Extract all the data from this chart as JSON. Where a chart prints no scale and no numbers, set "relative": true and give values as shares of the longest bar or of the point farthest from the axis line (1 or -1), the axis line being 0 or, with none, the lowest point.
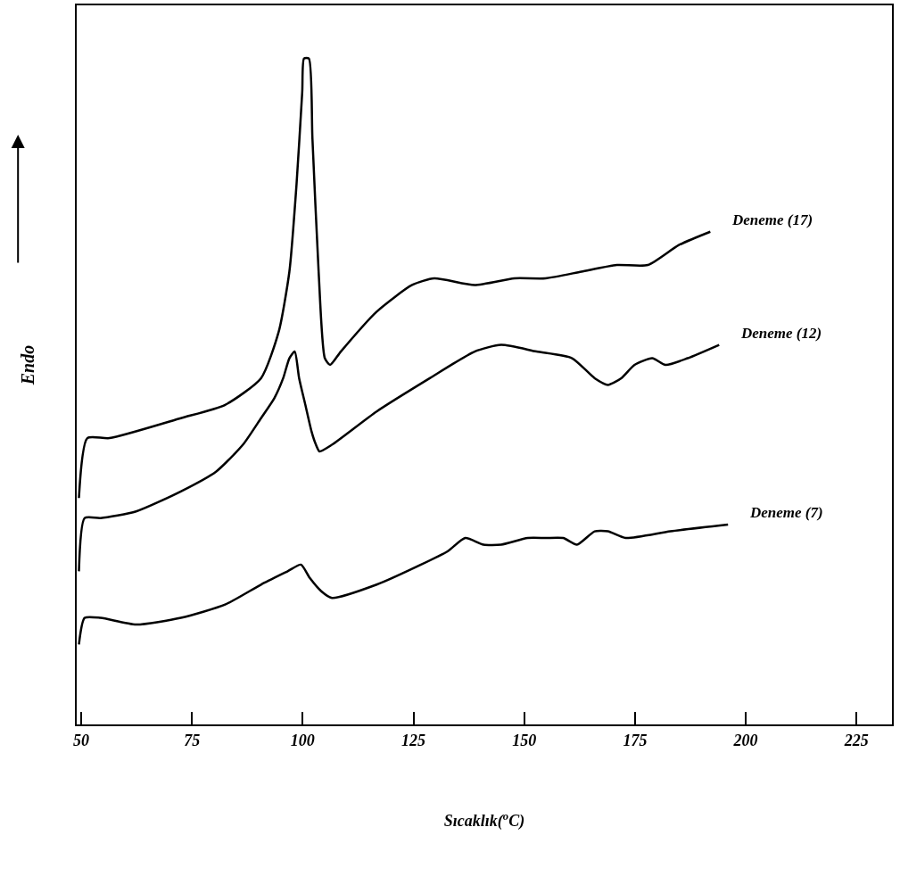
{
  "chart_data": {
    "type": "line",
    "relative": true,
    "xlabel": "Sıcaklık($^{o}$C)",
    "ylabel": "Endo",
    "xlim": [
      49,
      233
    ],
    "xticks": [
      50,
      75,
      100,
      125,
      150,
      175,
      200,
      225
    ],
    "tick_labels": "x",
    "legend": false,
    "marker": "none",
    "line_style": "solid",
    "series": [
      {
        "name": "Deneme (17)",
        "color": "#000000",
        "x": [
          49.5,
          51.4,
          56.4,
          72.5,
          82.5,
          90.6,
          94.6,
          97.0,
          98.6,
          99.9,
          100.3,
          101.4,
          102.2,
          103.6,
          105.0,
          106.2,
          108.6,
          116.7,
          124.7,
          129.7,
          138.8,
          147.8,
          154.8,
          162.9,
          170.9,
          177.9,
          184.9,
          192.0
        ],
        "values": [
          0.34,
          0.43,
          0.43,
          0.46,
          0.48,
          0.52,
          0.59,
          0.68,
          0.81,
          0.95,
          1.0,
          1.0,
          0.88,
          0.68,
          0.55,
          0.54,
          0.56,
          0.62,
          0.66,
          0.67,
          0.66,
          0.67,
          0.67,
          0.68,
          0.69,
          0.69,
          0.72,
          0.74
        ]
      },
      {
        "name": "Deneme (12)",
        "color": "#000000",
        "x": [
          49.5,
          50.8,
          54.4,
          62.4,
          72.5,
          80.5,
          86.5,
          90.6,
          93.6,
          95.6,
          97.0,
          98.2,
          99.2,
          100.6,
          102.0,
          103.0,
          103.8,
          106.6,
          116.7,
          128.7,
          138.8,
          144.8,
          152.8,
          160.8,
          165.9,
          168.9,
          171.9,
          174.9,
          178.9,
          181.9,
          186.9,
          194.0
        ],
        "values": [
          0.23,
          0.31,
          0.31,
          0.32,
          0.35,
          0.38,
          0.42,
          0.46,
          0.49,
          0.52,
          0.55,
          0.56,
          0.52,
          0.48,
          0.44,
          0.42,
          0.41,
          0.42,
          0.47,
          0.52,
          0.56,
          0.57,
          0.56,
          0.55,
          0.52,
          0.51,
          0.52,
          0.54,
          0.55,
          0.54,
          0.55,
          0.57
        ]
      },
      {
        "name": "Deneme (7)",
        "color": "#000000",
        "x": [
          49.5,
          50.8,
          54.4,
          62.4,
          72.5,
          82.5,
          90.6,
          96.6,
          99.6,
          101.6,
          104.2,
          106.6,
          116.7,
          126.7,
          132.7,
          136.7,
          140.8,
          144.8,
          150.8,
          154.8,
          158.8,
          161.9,
          165.9,
          168.9,
          172.9,
          183.0,
          196.0
        ],
        "values": [
          0.12,
          0.16,
          0.16,
          0.15,
          0.16,
          0.18,
          0.21,
          0.23,
          0.24,
          0.22,
          0.2,
          0.19,
          0.21,
          0.24,
          0.26,
          0.28,
          0.27,
          0.27,
          0.28,
          0.28,
          0.28,
          0.27,
          0.29,
          0.29,
          0.28,
          0.29,
          0.3
        ]
      }
    ]
  }
}
